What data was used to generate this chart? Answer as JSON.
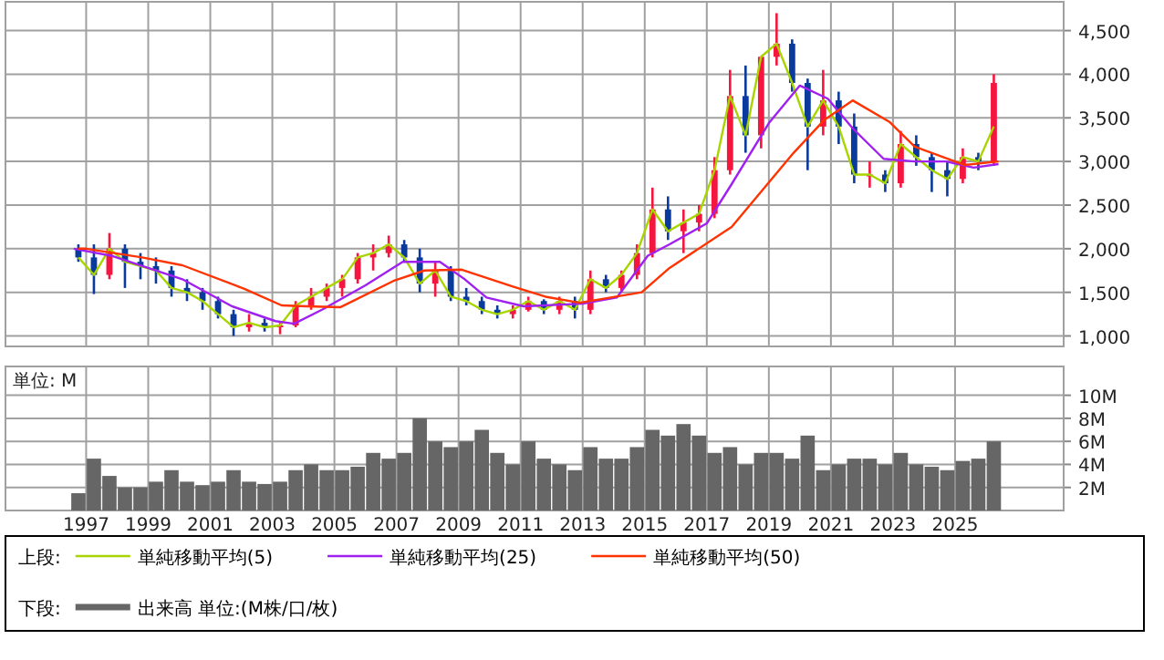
{
  "chart_data": [
    {
      "type": "candlestick",
      "legend": "bottom",
      "legend_title": "上段:",
      "grid": true,
      "tick_labels": "y",
      "xlim": [
        1994.4,
        2028.5
      ],
      "xticks": [
        1997,
        1999,
        2001,
        2003,
        2005,
        2007,
        2009,
        2011,
        2013,
        2015,
        2017,
        2019,
        2021,
        2023,
        2025
      ],
      "ylim": [
        880,
        4830
      ],
      "yticks": [
        {
          "value": 1000,
          "label": "1,000"
        },
        {
          "value": 1500,
          "label": "1,500"
        },
        {
          "value": 2000,
          "label": "2,000"
        },
        {
          "value": 2500,
          "label": "2,500"
        },
        {
          "value": 3000,
          "label": "3,000"
        },
        {
          "value": 3500,
          "label": "3,500"
        },
        {
          "value": 4000,
          "label": "4,000"
        },
        {
          "value": 4500,
          "label": "4,500"
        }
      ],
      "x": [
        1996.75,
        1997.25,
        1997.75,
        1998.25,
        1998.75,
        1999.25,
        1999.75,
        2000.25,
        2000.75,
        2001.25,
        2001.75,
        2002.25,
        2002.75,
        2003.25,
        2003.75,
        2004.25,
        2004.75,
        2005.25,
        2005.75,
        2006.25,
        2006.75,
        2007.25,
        2007.75,
        2008.25,
        2008.75,
        2009.25,
        2009.75,
        2010.25,
        2010.75,
        2011.25,
        2011.75,
        2012.25,
        2012.75,
        2013.25,
        2013.75,
        2014.25,
        2014.75,
        2015.25,
        2015.75,
        2016.25,
        2016.75,
        2017.25,
        2017.75,
        2018.25,
        2018.75,
        2019.25,
        2019.75,
        2020.25,
        2020.75,
        2021.25,
        2021.75,
        2022.25,
        2022.75,
        2023.25,
        2023.75,
        2024.25,
        2024.75,
        2025.25,
        2025.75,
        2026.25
      ],
      "ohlc": [
        [
          2000,
          2050,
          1850,
          1900
        ],
        [
          1900,
          2050,
          1480,
          1700
        ],
        [
          1700,
          2180,
          1650,
          2000
        ],
        [
          2000,
          2050,
          1550,
          1850
        ],
        [
          1850,
          1950,
          1650,
          1800
        ],
        [
          1800,
          1900,
          1600,
          1750
        ],
        [
          1750,
          1800,
          1450,
          1550
        ],
        [
          1550,
          1650,
          1400,
          1500
        ],
        [
          1500,
          1550,
          1300,
          1400
        ],
        [
          1400,
          1450,
          1200,
          1250
        ],
        [
          1250,
          1300,
          1000,
          1100
        ],
        [
          1100,
          1250,
          1050,
          1150
        ],
        [
          1150,
          1200,
          1050,
          1100
        ],
        [
          1100,
          1150,
          1020,
          1120
        ],
        [
          1120,
          1400,
          1100,
          1350
        ],
        [
          1350,
          1550,
          1300,
          1450
        ],
        [
          1450,
          1600,
          1400,
          1550
        ],
        [
          1550,
          1700,
          1450,
          1650
        ],
        [
          1650,
          1950,
          1600,
          1900
        ],
        [
          1900,
          2050,
          1750,
          1950
        ],
        [
          1950,
          2150,
          1900,
          2050
        ],
        [
          2050,
          2100,
          1850,
          1900
        ],
        [
          1900,
          2000,
          1500,
          1600
        ],
        [
          1600,
          1850,
          1450,
          1750
        ],
        [
          1750,
          1800,
          1400,
          1450
        ],
        [
          1450,
          1550,
          1350,
          1400
        ],
        [
          1400,
          1450,
          1250,
          1300
        ],
        [
          1300,
          1350,
          1200,
          1250
        ],
        [
          1250,
          1350,
          1200,
          1300
        ],
        [
          1300,
          1450,
          1280,
          1400
        ],
        [
          1400,
          1420,
          1250,
          1300
        ],
        [
          1300,
          1450,
          1250,
          1400
        ],
        [
          1400,
          1450,
          1200,
          1300
        ],
        [
          1300,
          1750,
          1250,
          1650
        ],
        [
          1650,
          1700,
          1500,
          1550
        ],
        [
          1550,
          1750,
          1500,
          1700
        ],
        [
          1700,
          2050,
          1650,
          1950
        ],
        [
          1950,
          2700,
          1900,
          2450
        ],
        [
          2450,
          2600,
          2100,
          2200
        ],
        [
          2200,
          2450,
          1950,
          2300
        ],
        [
          2300,
          2500,
          2200,
          2400
        ],
        [
          2400,
          3050,
          2350,
          2900
        ],
        [
          2900,
          4050,
          2850,
          3750
        ],
        [
          3750,
          4100,
          3100,
          3300
        ],
        [
          3300,
          4200,
          3150,
          4200
        ],
        [
          4200,
          4700,
          4100,
          4350
        ],
        [
          4350,
          4400,
          3800,
          3900
        ],
        [
          3900,
          3950,
          2900,
          3400
        ],
        [
          3400,
          4050,
          3300,
          3700
        ],
        [
          3700,
          3800,
          3200,
          3400
        ],
        [
          3400,
          3550,
          2750,
          2850
        ],
        [
          2850,
          3000,
          2700,
          2850
        ],
        [
          2850,
          2900,
          2650,
          2750
        ],
        [
          2750,
          3350,
          2700,
          3200
        ],
        [
          3200,
          3300,
          2950,
          3050
        ],
        [
          3050,
          3100,
          2650,
          2900
        ],
        [
          2900,
          3000,
          2600,
          2800
        ],
        [
          2800,
          3150,
          2750,
          3050
        ],
        [
          3050,
          3100,
          2900,
          3000
        ],
        [
          3000,
          4000,
          2950,
          3900
        ]
      ],
      "colors": [
        "#0a3b9c",
        "#0a3b9c",
        "#f5163f",
        "#0a3b9c",
        "#0a3b9c",
        "#0a3b9c",
        "#0a3b9c",
        "#0a3b9c",
        "#0a3b9c",
        "#0a3b9c",
        "#0a3b9c",
        "#f5163f",
        "#0a3b9c",
        "#f5163f",
        "#f5163f",
        "#f5163f",
        "#f5163f",
        "#f5163f",
        "#f5163f",
        "#f5163f",
        "#f5163f",
        "#0a3b9c",
        "#0a3b9c",
        "#f5163f",
        "#0a3b9c",
        "#0a3b9c",
        "#0a3b9c",
        "#0a3b9c",
        "#f5163f",
        "#f5163f",
        "#0a3b9c",
        "#f5163f",
        "#0a3b9c",
        "#f5163f",
        "#0a3b9c",
        "#f5163f",
        "#f5163f",
        "#f5163f",
        "#0a3b9c",
        "#f5163f",
        "#f5163f",
        "#f5163f",
        "#f5163f",
        "#0a3b9c",
        "#f5163f",
        "#f5163f",
        "#0a3b9c",
        "#0a3b9c",
        "#f5163f",
        "#0a3b9c",
        "#0a3b9c",
        "#f5163f",
        "#0a3b9c",
        "#f5163f",
        "#0a3b9c",
        "#0a3b9c",
        "#0a3b9c",
        "#f5163f",
        "#0a3b9c",
        "#f5163f"
      ],
      "series": [
        {
          "type": "line",
          "name": "単純移動平均(5)",
          "color": "#a8d400",
          "x": [
            1996.75,
            1997.25,
            1997.75,
            1998.25,
            1998.75,
            1999.25,
            1999.75,
            2000.25,
            2000.75,
            2001.25,
            2001.75,
            2002.25,
            2002.75,
            2003.25,
            2003.75,
            2004.25,
            2004.75,
            2005.25,
            2005.75,
            2006.25,
            2006.75,
            2007.25,
            2007.75,
            2008.25,
            2008.75,
            2009.25,
            2009.75,
            2010.25,
            2010.75,
            2011.25,
            2011.75,
            2012.25,
            2012.75,
            2013.25,
            2013.75,
            2014.25,
            2014.75,
            2015.25,
            2015.75,
            2016.25,
            2016.75,
            2017.25,
            2017.75,
            2018.25,
            2018.75,
            2019.25,
            2019.75,
            2020.25,
            2020.75,
            2021.25,
            2021.75,
            2022.25,
            2022.75,
            2023.25,
            2023.75,
            2024.25,
            2024.75,
            2025.25,
            2025.75,
            2026.25
          ],
          "values": [
            1900,
            1700,
            2000,
            1850,
            1800,
            1750,
            1550,
            1500,
            1400,
            1250,
            1100,
            1150,
            1100,
            1120,
            1350,
            1450,
            1550,
            1650,
            1900,
            1950,
            2050,
            1900,
            1600,
            1750,
            1450,
            1400,
            1300,
            1250,
            1300,
            1400,
            1300,
            1400,
            1300,
            1650,
            1550,
            1700,
            1950,
            2450,
            2200,
            2300,
            2400,
            2900,
            3750,
            3300,
            4200,
            4350,
            3900,
            3400,
            3700,
            3400,
            2850,
            2850,
            2750,
            3200,
            3050,
            2900,
            2800,
            3050,
            3000,
            3400
          ]
        },
        {
          "type": "line",
          "name": "単純移動平均(25)",
          "color": "#a020f0",
          "x": [
            1996.6,
            1997.8,
            2000.1,
            2001.7,
            2003.1,
            2003.7,
            2004.6,
            2006.0,
            2007.2,
            2008.4,
            2009.2,
            2009.9,
            2011.1,
            2013.0,
            2014.1,
            2015.1,
            2015.8,
            2017.0,
            2017.8,
            2019.0,
            2020.0,
            2020.9,
            2021.7,
            2022.7,
            2023.7,
            2024.7,
            2025.6,
            2026.4
          ],
          "values": [
            2000,
            1920,
            1650,
            1340,
            1170,
            1140,
            1300,
            1580,
            1850,
            1850,
            1650,
            1440,
            1340,
            1370,
            1440,
            1920,
            2050,
            2290,
            2740,
            3440,
            3870,
            3720,
            3380,
            3030,
            3000,
            3000,
            2930,
            2970
          ]
        },
        {
          "type": "line",
          "name": "単純移動平均(50)",
          "color": "#ff3300",
          "x": [
            1996.75,
            1997.0,
            1998.8,
            2000.1,
            2002.1,
            2003.3,
            2004.1,
            2005.2,
            2006.9,
            2007.9,
            2009.1,
            2010.8,
            2011.8,
            2012.9,
            2014.9,
            2015.8,
            2017.8,
            2019.8,
            2020.8,
            2021.7,
            2022.9,
            2023.7,
            2025.3,
            2026.4
          ],
          "values": [
            2000,
            2000,
            1900,
            1810,
            1540,
            1350,
            1340,
            1330,
            1630,
            1750,
            1760,
            1560,
            1450,
            1380,
            1500,
            1780,
            2250,
            3100,
            3480,
            3700,
            3450,
            3170,
            2960,
            3000
          ]
        }
      ]
    },
    {
      "type": "bar",
      "legend": "bottom",
      "legend_title": "下段:",
      "grid": true,
      "annotations": [
        "単位: M"
      ],
      "xlim": [
        1994.4,
        2028.5
      ],
      "xticks": [
        1997,
        1999,
        2001,
        2003,
        2005,
        2007,
        2009,
        2011,
        2013,
        2015,
        2017,
        2019,
        2021,
        2023,
        2025
      ],
      "ylim": [
        0,
        12.5
      ],
      "yticks": [
        {
          "value": 2,
          "label": "2M"
        },
        {
          "value": 4,
          "label": "4M"
        },
        {
          "value": 6,
          "label": "6M"
        },
        {
          "value": 8,
          "label": "8M"
        },
        {
          "value": 10,
          "label": "10M"
        }
      ],
      "x": [
        1996.75,
        1997.25,
        1997.75,
        1998.25,
        1998.75,
        1999.25,
        1999.75,
        2000.25,
        2000.75,
        2001.25,
        2001.75,
        2002.25,
        2002.75,
        2003.25,
        2003.75,
        2004.25,
        2004.75,
        2005.25,
        2005.75,
        2006.25,
        2006.75,
        2007.25,
        2007.75,
        2008.25,
        2008.75,
        2009.25,
        2009.75,
        2010.25,
        2010.75,
        2011.25,
        2011.75,
        2012.25,
        2012.75,
        2013.25,
        2013.75,
        2014.25,
        2014.75,
        2015.25,
        2015.75,
        2016.25,
        2016.75,
        2017.25,
        2017.75,
        2018.25,
        2018.75,
        2019.25,
        2019.75,
        2020.25,
        2020.75,
        2021.25,
        2021.75,
        2022.25,
        2022.75,
        2023.25,
        2023.75,
        2024.25,
        2024.75,
        2025.25,
        2025.75,
        2026.25
      ],
      "series": [
        {
          "name": "出来高 単位:(M株/口/枚)",
          "color": "#666666",
          "values": [
            1.5,
            4.5,
            3,
            2,
            2,
            2.5,
            3.5,
            2.5,
            2.2,
            2.5,
            3.5,
            2.5,
            2.3,
            2.5,
            3.5,
            4,
            3.5,
            3.5,
            3.8,
            5,
            4.5,
            5,
            8,
            6,
            5.5,
            6,
            7,
            5,
            4,
            6,
            4.5,
            4,
            3.5,
            5.5,
            4.5,
            4.5,
            5.5,
            7,
            6.5,
            7.5,
            6.5,
            5,
            5.5,
            4,
            5,
            5,
            4.5,
            6.5,
            3.5,
            4,
            4.5,
            4.5,
            4,
            5,
            4,
            3.8,
            3.5,
            4.3,
            4.5,
            6
          ]
        }
      ]
    }
  ]
}
